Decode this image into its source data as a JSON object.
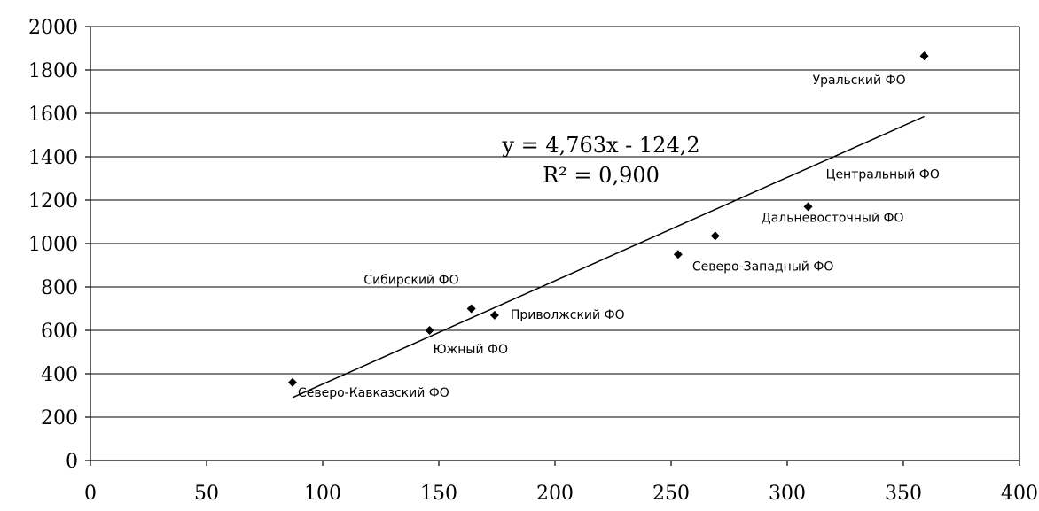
{
  "chart_data": {
    "type": "scatter",
    "title": "",
    "xlabel": "",
    "ylabel": "",
    "xlim": [
      0,
      400
    ],
    "ylim": [
      0,
      2000
    ],
    "x_ticks": [
      0,
      50,
      100,
      150,
      200,
      250,
      300,
      350,
      400
    ],
    "y_ticks": [
      0,
      200,
      400,
      600,
      800,
      1000,
      1200,
      1400,
      1600,
      1800,
      2000
    ],
    "x_tick_labels": [
      "0",
      "50",
      "100",
      "150",
      "200",
      "250",
      "300",
      "350",
      "400"
    ],
    "y_tick_labels": [
      "0",
      "200",
      "400",
      "600",
      "800",
      "1000",
      "1200",
      "1400",
      "1600",
      "1800",
      "2000"
    ],
    "grid": "horizontal",
    "points": [
      {
        "label": "Северо-Кавказский ФО",
        "x": 87,
        "y": 360
      },
      {
        "label": "Южный ФО",
        "x": 146,
        "y": 600
      },
      {
        "label": "Сибирский ФО",
        "x": 164,
        "y": 700
      },
      {
        "label": "Приволжский ФО",
        "x": 174,
        "y": 670
      },
      {
        "label": "Северо-Западный ФО",
        "x": 253,
        "y": 950
      },
      {
        "label": "Дальневосточный ФО",
        "x": 269,
        "y": 1035
      },
      {
        "label": "Центральный ФО",
        "x": 309,
        "y": 1170
      },
      {
        "label": "Уральский ФО",
        "x": 359,
        "y": 1865
      }
    ],
    "trendline": {
      "slope": 4.763,
      "intercept": -124.2,
      "x_range": [
        87,
        359
      ],
      "equation_text": "y = 4,763x - 124,2",
      "r2_text": "R² = 0,900"
    }
  }
}
